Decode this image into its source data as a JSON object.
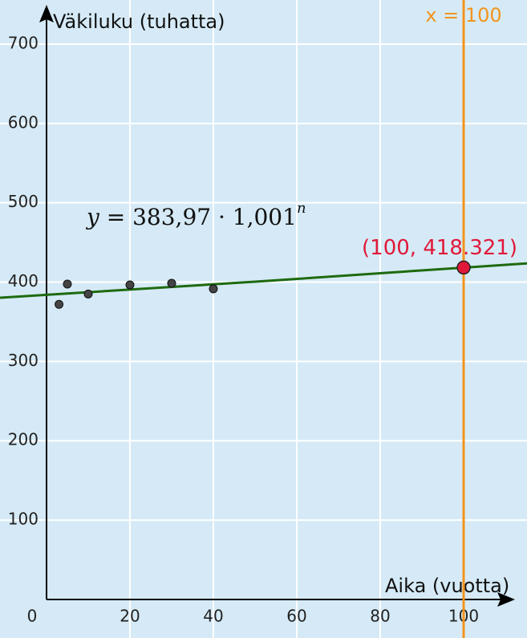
{
  "chart_data": {
    "type": "scatter",
    "x_title": "Aika (vuotta)",
    "y_title": "Väkiluku (tuhatta)",
    "xlim": [
      -11.15,
      115.19
    ],
    "ylim": [
      -48.6,
      755.6
    ],
    "xticks": [
      0,
      20,
      40,
      60,
      80,
      100
    ],
    "yticks": [
      100,
      200,
      300,
      400,
      500,
      600,
      700
    ],
    "grid": true,
    "equation": {
      "lhs": "y",
      "rhs": "= 383,97 · 1,001",
      "exponent": "n"
    },
    "vline": {
      "x": 100,
      "label": "x = 100",
      "color": "#f2941e"
    },
    "series": [
      {
        "type": "scatter",
        "color": "#444444",
        "x": [
          3,
          5,
          10,
          20,
          30,
          40
        ],
        "values": [
          372,
          397.5,
          385,
          396.5,
          398.5,
          391.5
        ]
      },
      {
        "type": "line",
        "color": "#1e6a10",
        "x": [
          -11.15,
          0,
          50,
          100,
          115.19
        ],
        "values": [
          380.3,
          384,
          400.5,
          418.3,
          423.6
        ]
      },
      {
        "type": "highlight",
        "color": "#e0193a",
        "x": [
          100
        ],
        "values": [
          418.321
        ],
        "value_labels": [
          "(100, 418.321)"
        ]
      }
    ]
  }
}
